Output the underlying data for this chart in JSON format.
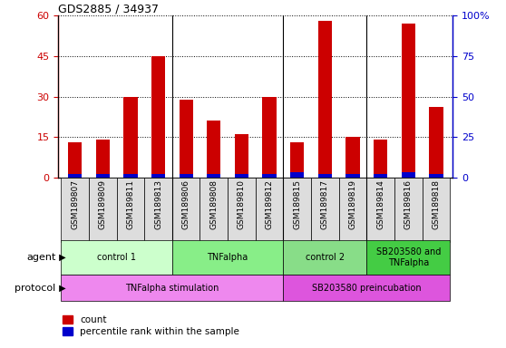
{
  "title": "GDS2885 / 34937",
  "samples": [
    "GSM189807",
    "GSM189809",
    "GSM189811",
    "GSM189813",
    "GSM189806",
    "GSM189808",
    "GSM189810",
    "GSM189812",
    "GSM189815",
    "GSM189817",
    "GSM189819",
    "GSM189814",
    "GSM189816",
    "GSM189818"
  ],
  "count_values": [
    13,
    14,
    30,
    45,
    29,
    21,
    16,
    30,
    13,
    58,
    15,
    14,
    57,
    26
  ],
  "percentile_values": [
    2,
    2,
    2,
    2,
    2,
    2,
    2,
    2,
    3,
    2,
    2,
    2,
    3,
    2
  ],
  "ylim_left": [
    0,
    60
  ],
  "ylim_right": [
    0,
    100
  ],
  "yticks_left": [
    0,
    15,
    30,
    45,
    60
  ],
  "yticks_right": [
    0,
    25,
    50,
    75,
    100
  ],
  "count_color": "#cc0000",
  "percentile_color": "#0000cc",
  "agent_groups": [
    {
      "label": "control 1",
      "start": 0,
      "end": 4,
      "color": "#ccffcc"
    },
    {
      "label": "TNFalpha",
      "start": 4,
      "end": 8,
      "color": "#88ee88"
    },
    {
      "label": "control 2",
      "start": 8,
      "end": 11,
      "color": "#88dd88"
    },
    {
      "label": "SB203580 and\nTNFalpha",
      "start": 11,
      "end": 14,
      "color": "#44cc44"
    }
  ],
  "protocol_groups": [
    {
      "label": "TNFalpha stimulation",
      "start": 0,
      "end": 8,
      "color": "#ee88ee"
    },
    {
      "label": "SB203580 preincubation",
      "start": 8,
      "end": 14,
      "color": "#dd55dd"
    }
  ],
  "background_color": "#ffffff",
  "agent_label": "agent",
  "protocol_label": "protocol"
}
